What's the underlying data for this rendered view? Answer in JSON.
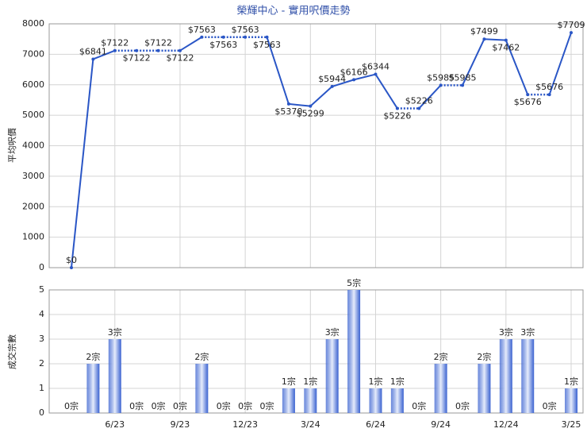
{
  "chart_data": [
    {
      "type": "line",
      "title": "榮輝中心 - 實用呎價走勢",
      "y_label": "平均呎價",
      "color": "#2a56c6",
      "values": [
        0,
        6841,
        7122,
        7122,
        7122,
        7122,
        7563,
        7563,
        7563,
        7563,
        5370,
        5299,
        5944,
        6166,
        6344,
        5226,
        5226,
        5985,
        5985,
        7499,
        7462,
        5676,
        5676,
        7709
      ],
      "value_labels": [
        "$0",
        "$6841",
        "$7122",
        "$7122",
        "$7122",
        "$7122",
        "$7563",
        "$7563",
        "$7563",
        "$7563",
        "$5370",
        "$5299",
        "$5944",
        "$6166",
        "$6344",
        "$5226",
        "$5226",
        "$5985",
        "$5985",
        "$7499",
        "$7462",
        "$5676",
        "$5676",
        "$7709"
      ],
      "ylim": [
        0,
        8000
      ],
      "yticks": [
        0,
        1000,
        2000,
        3000,
        4000,
        5000,
        6000,
        7000,
        8000
      ],
      "grid": true
    },
    {
      "type": "bar",
      "y_label": "成交宗數",
      "color": "#3a62d0",
      "categories": [
        null,
        null,
        "6/23",
        null,
        null,
        "9/23",
        null,
        null,
        "12/23",
        null,
        null,
        "3/24",
        null,
        null,
        "6/24",
        null,
        null,
        "9/24",
        null,
        null,
        "12/24",
        null,
        null,
        "3/25"
      ],
      "values": [
        0,
        2,
        3,
        0,
        0,
        0,
        2,
        0,
        0,
        0,
        1,
        1,
        3,
        5,
        1,
        1,
        0,
        2,
        0,
        2,
        3,
        3,
        0,
        1
      ],
      "value_labels": [
        "0宗",
        "2宗",
        "3宗",
        "0宗",
        "0宗",
        "0宗",
        "2宗",
        "0宗",
        "0宗",
        "0宗",
        "1宗",
        "1宗",
        "3宗",
        "5宗",
        "1宗",
        "1宗",
        "0宗",
        "2宗",
        "0宗",
        "2宗",
        "3宗",
        "3宗",
        "0宗",
        "1宗"
      ],
      "ylim": [
        0,
        5
      ],
      "yticks": [
        0,
        1,
        2,
        3,
        4,
        5
      ],
      "grid": true
    }
  ]
}
